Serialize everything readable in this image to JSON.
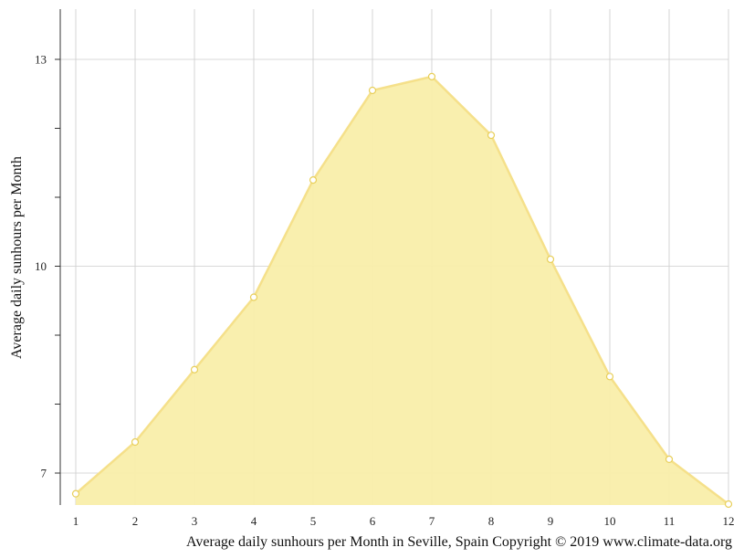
{
  "chart_data": {
    "type": "area",
    "x": [
      1,
      2,
      3,
      4,
      5,
      6,
      7,
      8,
      9,
      10,
      11,
      12
    ],
    "values": [
      6.7,
      7.45,
      8.5,
      9.55,
      11.25,
      12.55,
      12.75,
      11.9,
      10.1,
      8.4,
      7.2,
      6.55
    ],
    "ylabel": "Average daily sunhours per Month",
    "caption": "Average daily sunhours per Month in Seville, Spain Copyright © 2019 www.climate-data.org",
    "x_ticks": [
      "1",
      "2",
      "3",
      "4",
      "5",
      "6",
      "7",
      "8",
      "9",
      "10",
      "11",
      "12"
    ],
    "y_ticks": [
      7,
      10,
      13
    ],
    "y_tick_labels": [
      "7",
      "10",
      "13"
    ],
    "ylim": [
      6.55,
      13.7
    ],
    "grid": true,
    "colors": {
      "fill": "#f9eeaa",
      "line": "#f5e08a",
      "marker_fill": "#ffffff",
      "marker_stroke": "#e8cf5a",
      "grid": "#cccccc",
      "axis": "#333333"
    }
  }
}
